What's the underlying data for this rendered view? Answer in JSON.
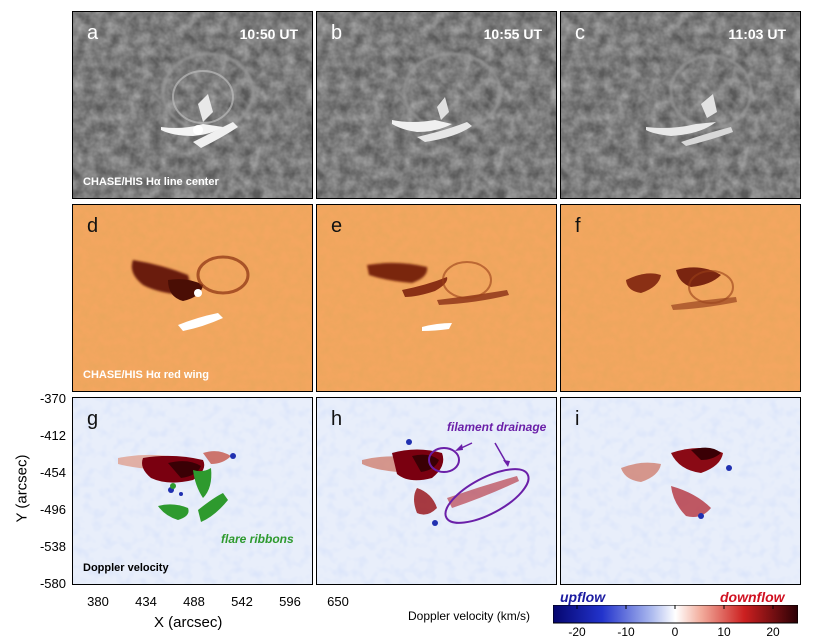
{
  "panels": {
    "a": {
      "letter": "a",
      "time": "10:50 UT",
      "note": "CHASE/HIS Hα line center"
    },
    "b": {
      "letter": "b",
      "time": "10:55 UT"
    },
    "c": {
      "letter": "c",
      "time": "11:03 UT"
    },
    "d": {
      "letter": "d",
      "note": "CHASE/HIS Hα red wing"
    },
    "e": {
      "letter": "e"
    },
    "f": {
      "letter": "f"
    },
    "g": {
      "letter": "g",
      "note": "Doppler velocity",
      "annotation": "flare ribbons"
    },
    "h": {
      "letter": "h",
      "annotation": "filament drainage"
    },
    "i": {
      "letter": "i"
    }
  },
  "axes": {
    "ylabel": "Y (arcsec)",
    "xlabel": "X (arcsec)",
    "yticks": [
      "-370",
      "-412",
      "-454",
      "-496",
      "-538",
      "-580"
    ],
    "xticks": [
      "380",
      "434",
      "488",
      "542",
      "596",
      "650"
    ]
  },
  "colorbar": {
    "title": "Doppler velocity (km/s)",
    "upflow": "upflow",
    "downflow": "downflow",
    "ticks": [
      "-20",
      "-10",
      "0",
      "10",
      "20"
    ],
    "range": [
      -25,
      25
    ],
    "colors": {
      "up": "#0a0a9a",
      "zero": "#ffffff",
      "down": "#3a0008"
    }
  },
  "colors": {
    "ribbon_green": "#2e9a2e",
    "drainage_purple": "#6a1fa8",
    "upflow_text": "#1a1aa0",
    "downflow_text": "#d01020"
  }
}
